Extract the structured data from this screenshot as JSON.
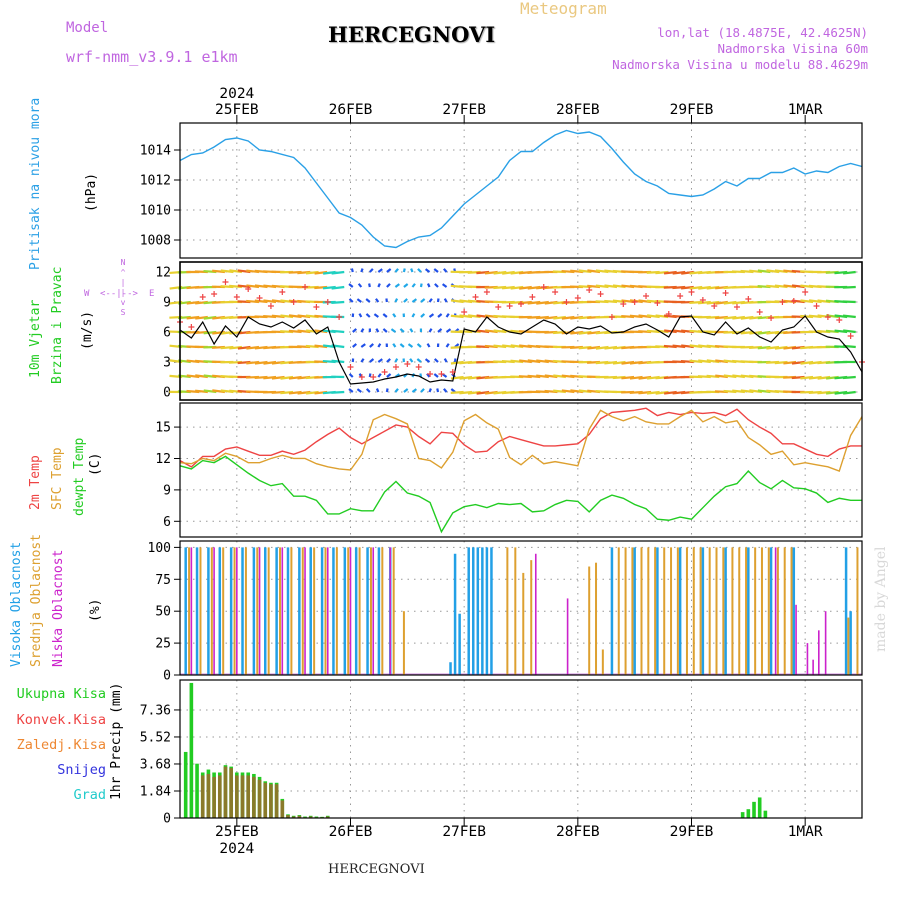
{
  "header": {
    "model_label": "Model",
    "model_name": "wrf-nmm_v3.9.1 e1km",
    "title": "HERCEGNOVI",
    "meteogram": "Meteogram",
    "lonlat": "lon,lat (18.4875E, 42.4625N)",
    "elev": "Nadmorska Visina 60m",
    "elev_model": "Nadmorska Visina u modelu 88.4629m"
  },
  "footer": {
    "station": "HERCEGNOVI",
    "credit": "made by Angel"
  },
  "colors": {
    "pressure": "#2aa0e6",
    "temp2m": "#ee4444",
    "sfc": "#dda030",
    "dewpt": "#22cc22",
    "high_cloud": "#22a0e6",
    "mid_cloud": "#dda030",
    "low_cloud": "#cc22cc",
    "total_precip": "#22cc22",
    "conv_precip": "#ee4444",
    "frozen_precip": "#ee8833",
    "snow": "#3333dd",
    "hail": "#22cccc",
    "wind_line": "#000000",
    "gust": "#ee4444"
  },
  "time_axis": {
    "year": "2024",
    "labels": [
      "25FEB",
      "26FEB",
      "27FEB",
      "28FEB",
      "29FEB",
      "1MAR"
    ],
    "label_days": [
      0.5,
      1.5,
      2.5,
      3.5,
      4.5,
      5.5
    ],
    "range_days": [
      0,
      6
    ]
  },
  "panel_labels": {
    "pressure": [
      "Pritisak na nivou mora"
    ],
    "pressure_unit": "(hPa)",
    "wind": [
      "10m Vjetar",
      "Brzina i Pravac"
    ],
    "wind_unit": "(m/s)",
    "compass": [
      "W",
      "<--|-->",
      "E"
    ],
    "compass_vertical": [
      "N",
      "^",
      "|",
      "|",
      "v",
      "S"
    ],
    "temp": [
      "2m Temp",
      "SFC Temp",
      "dewpt Temp"
    ],
    "temp_unit": "(C)",
    "cloud": [
      "Visoka Oblacnost",
      "Srednja Oblacnost",
      "Niska Oblacnost"
    ],
    "cloud_unit": "(%)",
    "precip_legend": [
      "Ukupna Kisa",
      "Konvek.Kisa",
      "Zaledj.Kisa",
      "Snijeg",
      "Grad"
    ],
    "precip_unit": "1hr Precip (mm)"
  },
  "chart_data": [
    {
      "type": "line",
      "name": "pressure",
      "ylim": [
        1006.8,
        1015.8
      ],
      "yticks": [
        1008,
        1010,
        1012,
        1014
      ],
      "x": [
        0.0,
        0.1,
        0.2,
        0.3,
        0.4,
        0.5,
        0.6,
        0.7,
        0.8,
        1.0,
        1.1,
        1.2,
        1.3,
        1.4,
        1.5,
        1.6,
        1.7,
        1.8,
        1.9,
        2.0,
        2.1,
        2.2,
        2.3,
        2.4,
        2.5,
        2.6,
        2.7,
        2.8,
        2.9,
        3.0,
        3.1,
        3.2,
        3.3,
        3.4,
        3.5,
        3.6,
        3.7,
        3.8,
        3.9,
        4.0,
        4.1,
        4.2,
        4.3,
        4.4,
        4.5,
        4.6,
        4.7,
        4.8,
        4.9,
        5.0,
        5.1,
        5.2,
        5.3,
        5.4,
        5.5,
        5.6,
        5.7,
        5.8,
        5.9,
        6.0
      ],
      "values": [
        1013.3,
        1013.7,
        1013.8,
        1014.2,
        1014.7,
        1014.8,
        1014.6,
        1014.0,
        1013.9,
        1013.5,
        1012.8,
        1011.8,
        1010.8,
        1009.8,
        1009.5,
        1009.0,
        1008.2,
        1007.6,
        1007.5,
        1007.9,
        1008.2,
        1008.3,
        1008.8,
        1009.6,
        1010.4,
        1011.0,
        1011.6,
        1012.2,
        1013.3,
        1013.9,
        1013.9,
        1014.5,
        1015.0,
        1015.3,
        1015.1,
        1015.2,
        1014.9,
        1014.1,
        1013.2,
        1012.4,
        1011.9,
        1011.6,
        1011.1,
        1011.0,
        1010.9,
        1011.0,
        1011.4,
        1011.9,
        1011.6,
        1012.1,
        1012.1,
        1012.5,
        1012.5,
        1012.8,
        1012.4,
        1012.6,
        1012.5,
        1012.9,
        1013.1,
        1012.9
      ]
    },
    {
      "type": "line",
      "name": "wind",
      "ylim": [
        -0.8,
        13
      ],
      "yticks": [
        0,
        3,
        6,
        9,
        12
      ],
      "x": [
        0.0,
        0.1,
        0.2,
        0.3,
        0.4,
        0.5,
        0.6,
        0.7,
        0.8,
        0.9,
        1.0,
        1.1,
        1.2,
        1.3,
        1.4,
        1.5,
        1.6,
        1.7,
        1.8,
        1.9,
        2.0,
        2.1,
        2.2,
        2.3,
        2.4,
        2.5,
        2.6,
        2.7,
        2.8,
        2.9,
        3.0,
        3.1,
        3.2,
        3.3,
        3.4,
        3.5,
        3.6,
        3.7,
        3.8,
        3.9,
        4.0,
        4.1,
        4.2,
        4.3,
        4.4,
        4.5,
        4.6,
        4.7,
        4.8,
        4.9,
        5.0,
        5.1,
        5.2,
        5.3,
        5.4,
        5.5,
        5.6,
        5.7,
        5.8,
        5.9,
        6.0
      ],
      "speed": [
        6.2,
        5.4,
        7.0,
        4.8,
        6.6,
        5.5,
        7.5,
        6.8,
        6.5,
        7.0,
        6.4,
        7.2,
        5.8,
        6.5,
        3.0,
        0.8,
        0.9,
        1.0,
        1.3,
        1.5,
        1.8,
        1.6,
        1.0,
        1.2,
        1.1,
        6.3,
        6.0,
        7.5,
        6.5,
        6.0,
        5.8,
        6.5,
        7.2,
        6.8,
        5.8,
        6.5,
        6.3,
        6.6,
        5.9,
        6.0,
        6.5,
        6.8,
        6.2,
        5.5,
        7.5,
        7.6,
        6.0,
        5.7,
        7.0,
        5.8,
        6.4,
        5.5,
        5.0,
        6.2,
        6.5,
        7.6,
        6.0,
        5.5,
        5.3,
        4.0,
        2.0
      ],
      "gust": [
        7.0,
        6.5,
        9.5,
        9.8,
        11.0,
        9.5,
        10.3,
        9.4,
        8.6,
        10.0,
        9.0,
        10.5,
        8.5,
        9.0,
        7.5,
        2.5,
        1.5,
        1.5,
        2.0,
        2.5,
        2.8,
        2.5,
        1.8,
        1.8,
        2.0,
        8.0,
        9.5,
        10.0,
        8.5,
        8.6,
        8.8,
        9.5,
        10.5,
        10.0,
        9.0,
        9.4,
        10.2,
        9.8,
        7.5,
        8.8,
        9.0,
        9.6,
        8.9,
        7.8,
        9.6,
        10.0,
        9.2,
        8.6,
        9.9,
        8.5,
        9.3,
        8.0,
        7.4,
        9.0,
        9.1,
        10.0,
        8.6,
        7.5,
        7.2,
        5.6,
        3.0
      ]
    },
    {
      "type": "line",
      "name": "temperature",
      "ylim": [
        4.5,
        17.3
      ],
      "yticks": [
        6,
        9,
        12,
        15
      ],
      "x": [
        0.0,
        0.1,
        0.2,
        0.3,
        0.4,
        0.5,
        0.6,
        0.7,
        0.8,
        0.9,
        1.0,
        1.1,
        1.2,
        1.3,
        1.4,
        1.5,
        1.6,
        1.7,
        1.8,
        1.9,
        2.0,
        2.1,
        2.2,
        2.3,
        2.4,
        2.5,
        2.6,
        2.7,
        2.8,
        2.9,
        3.0,
        3.1,
        3.2,
        3.3,
        3.4,
        3.5,
        3.6,
        3.7,
        3.8,
        3.9,
        4.0,
        4.1,
        4.2,
        4.3,
        4.4,
        4.5,
        4.6,
        4.7,
        4.8,
        4.9,
        5.0,
        5.1,
        5.2,
        5.3,
        5.4,
        5.5,
        5.6,
        5.7,
        5.8,
        5.9,
        6.0
      ],
      "series": [
        {
          "name": "2m Temp",
          "values": [
            11.8,
            11.2,
            12.2,
            12.2,
            12.9,
            13.1,
            12.7,
            12.3,
            12.3,
            12.7,
            12.4,
            12.8,
            13.6,
            14.3,
            14.9,
            14.0,
            13.4,
            14.0,
            14.6,
            15.2,
            15.0,
            14.1,
            13.4,
            14.5,
            14.4,
            13.3,
            12.6,
            12.7,
            13.6,
            14.1,
            13.8,
            13.5,
            13.2,
            13.2,
            13.3,
            13.4,
            14.3,
            15.8,
            16.4,
            16.5,
            16.6,
            16.8,
            16.1,
            16.4,
            16.2,
            16.4,
            16.3,
            16.4,
            16.1,
            16.7,
            15.7,
            15.0,
            14.4,
            13.4,
            13.4,
            12.9,
            12.4,
            12.2,
            12.9,
            13.2,
            13.2
          ]
        },
        {
          "name": "SFC Temp",
          "values": [
            11.6,
            11.5,
            12.0,
            11.8,
            12.5,
            12.2,
            11.6,
            11.6,
            12.0,
            12.3,
            12.0,
            12.0,
            11.5,
            11.2,
            11.0,
            10.9,
            12.4,
            15.7,
            16.2,
            15.8,
            15.3,
            12.0,
            11.8,
            11.1,
            12.6,
            15.6,
            16.2,
            15.4,
            14.8,
            12.1,
            11.4,
            12.3,
            11.5,
            11.7,
            11.5,
            11.3,
            14.8,
            16.6,
            16.0,
            15.6,
            16.0,
            15.5,
            15.3,
            15.3,
            16.0,
            16.6,
            15.5,
            16.0,
            15.4,
            15.6,
            14.0,
            13.3,
            12.4,
            12.7,
            11.4,
            11.6,
            11.4,
            11.2,
            10.8,
            14.2,
            16.0
          ]
        },
        {
          "name": "dewpt Temp",
          "values": [
            11.3,
            11.0,
            11.8,
            11.6,
            12.2,
            11.4,
            10.6,
            9.9,
            9.4,
            9.6,
            8.4,
            8.4,
            8.0,
            6.7,
            6.7,
            7.2,
            7.0,
            7.0,
            8.8,
            9.8,
            8.7,
            8.4,
            7.8,
            5.0,
            6.8,
            7.4,
            7.6,
            7.3,
            7.7,
            7.6,
            7.7,
            6.9,
            7.0,
            7.6,
            8.0,
            7.9,
            6.9,
            8.0,
            8.5,
            8.2,
            7.6,
            7.2,
            6.2,
            6.1,
            6.4,
            6.2,
            7.3,
            8.4,
            9.3,
            9.6,
            10.8,
            9.7,
            9.1,
            9.9,
            9.2,
            9.1,
            8.7,
            7.8,
            8.2,
            8.0,
            8.0
          ]
        }
      ]
    },
    {
      "type": "bar",
      "name": "cloud",
      "ylim": [
        0,
        105
      ],
      "yticks": [
        0,
        25,
        50,
        75,
        100
      ],
      "series": [
        {
          "name": "Visoka Oblacnost",
          "x": [
            0.05,
            0.15,
            0.25,
            0.35,
            0.45,
            0.55,
            0.65,
            0.75,
            0.85,
            0.95,
            1.05,
            1.15,
            1.25,
            1.35,
            1.45,
            1.55,
            1.65,
            1.75,
            1.85,
            2.38,
            2.42,
            2.46,
            2.54,
            2.58,
            2.62,
            2.66,
            2.7,
            2.74,
            3.8,
            4.0,
            4.2,
            4.4,
            4.6,
            4.8,
            5.0,
            5.2,
            5.4,
            5.86,
            5.9
          ],
          "values": [
            100,
            100,
            100,
            100,
            100,
            100,
            100,
            100,
            100,
            100,
            100,
            100,
            100,
            100,
            100,
            100,
            100,
            100,
            100,
            10,
            95,
            48,
            100,
            100,
            100,
            100,
            100,
            100,
            100,
            100,
            100,
            100,
            100,
            100,
            100,
            100,
            100,
            100,
            50
          ]
        },
        {
          "name": "Srednja Oblacnost",
          "x": [
            0.08,
            0.18,
            0.28,
            0.38,
            0.48,
            0.58,
            0.68,
            0.78,
            0.88,
            0.98,
            1.08,
            1.18,
            1.28,
            1.38,
            1.48,
            1.58,
            1.68,
            1.78,
            1.88,
            1.97,
            2.88,
            2.95,
            3.02,
            3.09,
            3.6,
            3.66,
            3.72,
            3.86,
            3.92,
            3.98,
            4.06,
            4.12,
            4.18,
            4.26,
            4.32,
            4.38,
            4.46,
            4.52,
            4.58,
            4.66,
            4.72,
            4.78,
            4.86,
            4.92,
            4.98,
            5.06,
            5.12,
            5.18,
            5.26,
            5.32,
            5.38,
            5.88,
            5.96
          ],
          "values": [
            100,
            100,
            100,
            100,
            100,
            100,
            100,
            100,
            100,
            100,
            100,
            100,
            100,
            100,
            100,
            100,
            100,
            100,
            100,
            50,
            100,
            100,
            80,
            90,
            85,
            88,
            20,
            100,
            100,
            100,
            100,
            100,
            100,
            100,
            100,
            100,
            100,
            100,
            100,
            100,
            100,
            100,
            100,
            100,
            100,
            100,
            100,
            100,
            100,
            100,
            100,
            45,
            100
          ]
        },
        {
          "name": "Niska Oblacnost",
          "x": [
            0.1,
            0.3,
            0.5,
            0.7,
            0.9,
            1.1,
            1.3,
            1.5,
            1.7,
            1.85,
            3.13,
            3.41,
            5.24,
            5.42,
            5.52,
            5.57,
            5.62,
            5.68
          ],
          "values": [
            100,
            100,
            100,
            100,
            100,
            100,
            100,
            100,
            100,
            100,
            95,
            60,
            100,
            55,
            25,
            12,
            35,
            50
          ]
        }
      ]
    },
    {
      "type": "bar",
      "name": "precip",
      "ylim": [
        0,
        9.4
      ],
      "yticks": [
        0,
        1.84,
        3.68,
        5.52,
        7.36
      ],
      "ytick_labels": [
        "0",
        "1.84",
        "3.68",
        "5.52",
        "7.36"
      ],
      "x": [
        0.05,
        0.1,
        0.15,
        0.2,
        0.25,
        0.3,
        0.35,
        0.4,
        0.45,
        0.5,
        0.55,
        0.6,
        0.65,
        0.7,
        0.75,
        0.8,
        0.85,
        0.9,
        0.95,
        1.0,
        1.05,
        1.1,
        1.15,
        1.2,
        1.25,
        1.3,
        4.95,
        5.0,
        5.05,
        5.1,
        5.15
      ],
      "series": [
        {
          "name": "Ukupna Kisa",
          "values": [
            4.5,
            9.2,
            3.7,
            3.1,
            3.3,
            3.1,
            3.1,
            3.6,
            3.5,
            3.1,
            3.1,
            3.1,
            3.0,
            2.8,
            2.5,
            2.4,
            2.4,
            1.3,
            0.25,
            0.15,
            0.2,
            0.1,
            0.15,
            0.1,
            0.08,
            0.15,
            0.4,
            0.6,
            1.1,
            1.4,
            0.5
          ]
        },
        {
          "name": "Konvek.Kisa",
          "values": [
            0,
            0,
            0,
            2.9,
            3.0,
            2.8,
            2.9,
            3.5,
            3.4,
            2.9,
            2.9,
            2.9,
            2.8,
            2.6,
            2.4,
            2.3,
            2.3,
            1.2,
            0.2,
            0.1,
            0.15,
            0.05,
            0.1,
            0.05,
            0.05,
            0.1,
            0,
            0,
            0,
            0,
            0
          ]
        }
      ]
    }
  ]
}
